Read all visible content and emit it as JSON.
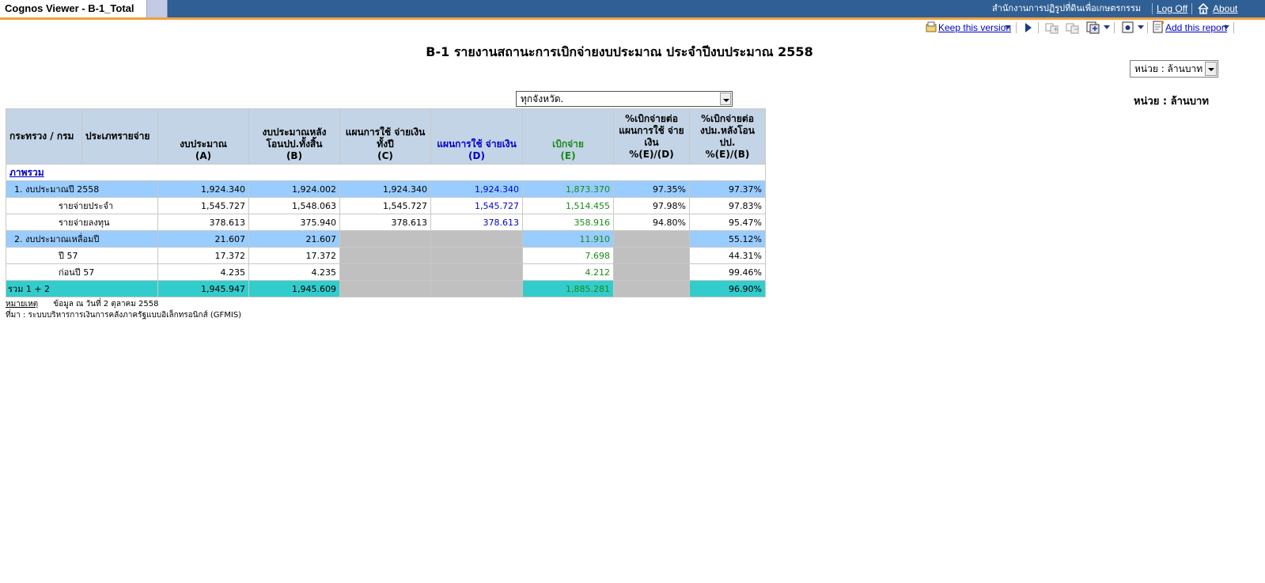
{
  "window": {
    "title": "Cognos Viewer - B-1_Total",
    "organization": "สำนักงานการปฏิรูปที่ดินเพื่อเกษตรกรรม",
    "log_off": "Log Off",
    "about": "About"
  },
  "toolbar": {
    "keep_version": "Keep this version",
    "add_report": "Add this report",
    "icons": [
      "keep-version-icon",
      "run-icon",
      "drill-down-icon",
      "drill-up-icon",
      "related-links-icon",
      "view-format-icon",
      "add-report-icon"
    ]
  },
  "report": {
    "title": "B-1 รายงานสถานะการเบิกจ่ายงบประมาณ ประจำปีงบประมาณ 2558",
    "unit_select_value": "หน่วย : ล้านบาท",
    "unit_label": "หน่วย : ล้านบาท",
    "province_select_value": "ทุกจังหวัด.",
    "section_link": "ภาพรวม"
  },
  "table": {
    "headers": [
      {
        "line1": "กระทรวง / กรม",
        "line2": ""
      },
      {
        "line1": "ประเภทรายจ่าย",
        "line2": ""
      },
      {
        "line1": "งบประมาณ",
        "line2": "(A)"
      },
      {
        "line1": "งบประมาณหลัง โอนปป.ทั้งสิ้น",
        "line2": "(B)"
      },
      {
        "line1": "แผนการใช้ จ่ายเงิน ทั้งปี",
        "line2": "(C)"
      },
      {
        "line1": "แผนการใช้ จ่ายเงิน",
        "line2": "(D)"
      },
      {
        "line1": "เบิกจ่าย",
        "line2": "(E)"
      },
      {
        "line1": "%เบิกจ่ายต่อ แผนการใช้ จ่าย เงิน",
        "line2": "%(E)/(D)"
      },
      {
        "line1": "%เบิกจ่ายต่อ งปม.หลังโอน ปป.",
        "line2": "%(E)/(B)"
      }
    ],
    "rows": [
      {
        "label": "1. งบประมาณปี 2558",
        "A": "1,924.340",
        "B": "1,924.002",
        "C": "1,924.340",
        "D": "1,924.340",
        "E": "1,873.370",
        "ED": "97.35%",
        "EB": "97.37%"
      },
      {
        "label": "รายจ่ายประจำ",
        "A": "1,545.727",
        "B": "1,548.063",
        "C": "1,545.727",
        "D": "1,545.727",
        "E": "1,514.455",
        "ED": "97.98%",
        "EB": "97.83%"
      },
      {
        "label": "รายจ่ายลงทุน",
        "A": "378.613",
        "B": "375.940",
        "C": "378.613",
        "D": "378.613",
        "E": "358.916",
        "ED": "94.80%",
        "EB": "95.47%"
      },
      {
        "label": "2. งบประมาณเหลื่อมปี",
        "A": "21.607",
        "B": "21.607",
        "C": "",
        "D": "",
        "E": "11.910",
        "ED": "",
        "EB": "55.12%"
      },
      {
        "label": "ปี 57",
        "A": "17.372",
        "B": "17.372",
        "C": "",
        "D": "",
        "E": "7.698",
        "ED": "",
        "EB": "44.31%"
      },
      {
        "label": "ก่อนปี 57",
        "A": "4.235",
        "B": "4.235",
        "C": "",
        "D": "",
        "E": "4.212",
        "ED": "",
        "EB": "99.46%"
      },
      {
        "label": "รวม 1 + 2",
        "A": "1,945.947",
        "B": "1,945.609",
        "C": "",
        "D": "",
        "E": "1,885.281",
        "ED": "",
        "EB": "96.90%"
      }
    ]
  },
  "footnotes": {
    "note_link": "หมายเหตุ",
    "note_text": "ข้อมูล ณ วันที่ 2  ตุลาคม 2558",
    "source": "ที่มา : ระบบบริหารการเงินการคลังภาครัฐแบบอิเล็กทรอนิกส์ (GFMIS)"
  }
}
